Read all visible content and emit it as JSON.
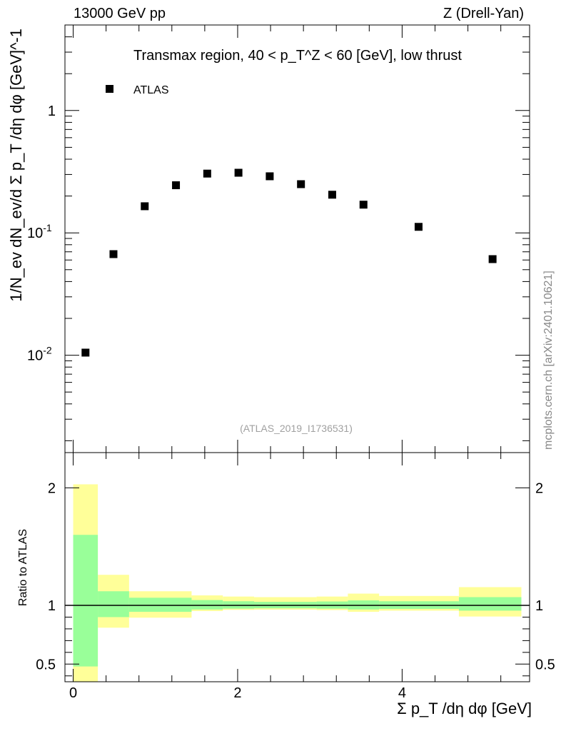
{
  "header": {
    "left": "13000 GeV pp",
    "right": "Z (Drell-Yan)"
  },
  "watermark": "mcplots.cern.ch [arXiv:2401.10621]",
  "analysis_label": "(ATLAS_2019_I1736531)",
  "colors": {
    "band_outer": "#ffff99",
    "band_inner": "#99ff99",
    "marker": "#000000",
    "analysis_text": "#a0a0a0"
  },
  "chart_data": [
    {
      "type": "scatter",
      "title": "Transmax region, 40 < p_T^Z < 60 [GeV], low thrust",
      "ylabel": "1/N_ev dN_ev/d Σ p_T /dη dφ [GeV]^-1",
      "xlabel": "",
      "xlim": [
        -0.1,
        5.55
      ],
      "ylim": [
        0.0016,
        5.0
      ],
      "yscale": "log",
      "ytick_labels": [
        "10^-2",
        "10^-1",
        "1"
      ],
      "legend": {
        "position": "top-left",
        "entries": [
          "ATLAS"
        ]
      },
      "series": [
        {
          "name": "ATLAS",
          "x": [
            0.15,
            0.49,
            0.87,
            1.25,
            1.63,
            2.01,
            2.39,
            2.77,
            3.15,
            3.53,
            4.2,
            5.1
          ],
          "y": [
            0.0105,
            0.067,
            0.165,
            0.245,
            0.305,
            0.31,
            0.29,
            0.25,
            0.205,
            0.17,
            0.112,
            0.061
          ]
        }
      ]
    },
    {
      "type": "area",
      "title": "",
      "ylabel": "Ratio to ATLAS",
      "xlabel": "Σ p_T /dη dφ [GeV]",
      "xlim": [
        -0.1,
        5.55
      ],
      "ylim": [
        0.35,
        2.3
      ],
      "xtick_labels": [
        "0",
        "2",
        "4"
      ],
      "ytick_labels": [
        "0.5",
        "1",
        "2"
      ],
      "reference_line": 1.0,
      "bins": [
        {
          "lo": 0.0,
          "hi": 0.3,
          "inner": [
            0.48,
            1.6
          ],
          "outer": [
            0.2,
            2.03
          ]
        },
        {
          "lo": 0.3,
          "hi": 0.68,
          "inner": [
            0.9,
            1.12
          ],
          "outer": [
            0.81,
            1.26
          ]
        },
        {
          "lo": 0.68,
          "hi": 1.44,
          "inner": [
            0.945,
            1.065
          ],
          "outer": [
            0.895,
            1.12
          ]
        },
        {
          "lo": 1.44,
          "hi": 1.82,
          "inner": [
            0.965,
            1.045
          ],
          "outer": [
            0.952,
            1.085
          ]
        },
        {
          "lo": 1.82,
          "hi": 2.2,
          "inner": [
            0.972,
            1.035
          ],
          "outer": [
            0.962,
            1.075
          ]
        },
        {
          "lo": 2.2,
          "hi": 2.96,
          "inner": [
            0.975,
            1.03
          ],
          "outer": [
            0.964,
            1.07
          ]
        },
        {
          "lo": 2.96,
          "hi": 3.34,
          "inner": [
            0.972,
            1.033
          ],
          "outer": [
            0.96,
            1.075
          ]
        },
        {
          "lo": 3.34,
          "hi": 3.72,
          "inner": [
            0.965,
            1.042
          ],
          "outer": [
            0.945,
            1.1
          ]
        },
        {
          "lo": 3.72,
          "hi": 4.69,
          "inner": [
            0.97,
            1.035
          ],
          "outer": [
            0.955,
            1.08
          ]
        },
        {
          "lo": 4.69,
          "hi": 5.45,
          "inner": [
            0.955,
            1.07
          ],
          "outer": [
            0.905,
            1.155
          ]
        }
      ]
    }
  ]
}
